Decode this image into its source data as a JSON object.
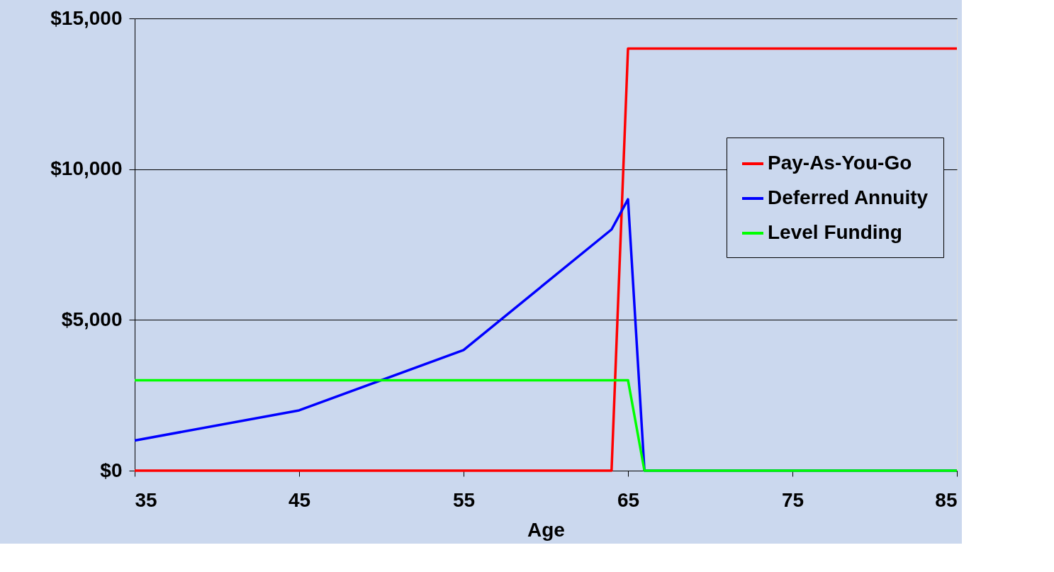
{
  "chart_data": {
    "type": "line",
    "xlabel": "Age",
    "xlim": [
      35,
      85
    ],
    "xticks": [
      35,
      45,
      55,
      65,
      75,
      85
    ],
    "ylim": [
      0,
      15000
    ],
    "yticks": [
      {
        "value": 0,
        "label": "$0"
      },
      {
        "value": 5000,
        "label": "$5,000"
      },
      {
        "value": 10000,
        "label": "$10,000"
      },
      {
        "value": 15000,
        "label": "$15,000"
      }
    ],
    "grid": "y",
    "legend": "right",
    "marker": "none",
    "line_style": "solid",
    "series": [
      {
        "name": "Pay-As-You-Go",
        "color": "#ff0000",
        "x": [
          35,
          64,
          65,
          85
        ],
        "values": [
          0,
          0,
          14000,
          14000
        ]
      },
      {
        "name": "Deferred Annuity",
        "color": "#0000ff",
        "x": [
          35,
          45,
          55,
          64,
          65,
          66,
          85
        ],
        "values": [
          1000,
          2000,
          4000,
          8000,
          9000,
          0,
          0
        ]
      },
      {
        "name": "Level Funding",
        "color": "#00ff00",
        "x": [
          35,
          65,
          66,
          85
        ],
        "values": [
          3000,
          3000,
          0,
          0
        ]
      }
    ]
  }
}
